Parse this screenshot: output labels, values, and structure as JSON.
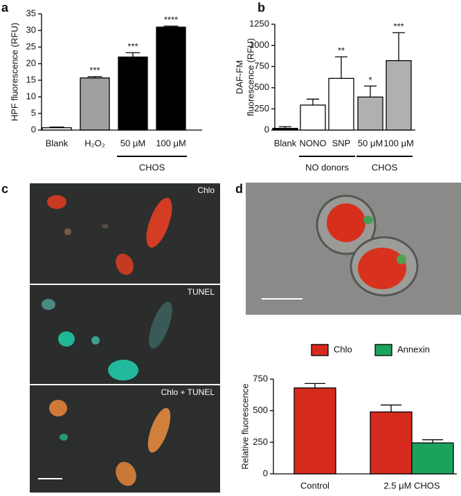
{
  "panels": [
    "a",
    "b",
    "c",
    "d"
  ],
  "images": {
    "c": [
      "Chlo",
      "TUNEL",
      "Chlo + TUNEL"
    ]
  },
  "chart_data": [
    {
      "type": "bar",
      "ylabel": [
        "HPF fluorescence (RFU)"
      ],
      "categories": [
        "Blank",
        "H₂O₂",
        "50 μM",
        "100 μM"
      ],
      "values": [
        0.7,
        15.7,
        22,
        31
      ],
      "errors": [
        0.2,
        0.4,
        1.3,
        0.3
      ],
      "colors": [
        "#ffffff",
        "#a0a0a0",
        "#000000",
        "#000000"
      ],
      "significance": [
        null,
        "***",
        "***",
        "****"
      ],
      "groups": [
        {
          "label": "CHOS",
          "span": [
            2,
            3
          ]
        }
      ],
      "ylim": [
        0,
        35
      ],
      "yticks": [
        0,
        5,
        10,
        15,
        20,
        25,
        30,
        35
      ]
    },
    {
      "type": "bar",
      "ylabel": [
        "DAF-FM",
        "fluorescence (RFU)"
      ],
      "categories": [
        "Blank",
        "NONO",
        "SNP",
        "50 μM",
        "100 μM"
      ],
      "values": [
        20,
        295,
        610,
        390,
        820
      ],
      "errors": [
        20,
        70,
        255,
        130,
        330
      ],
      "colors": [
        "#000000",
        "#ffffff",
        "#ffffff",
        "#b0b0b0",
        "#b0b0b0"
      ],
      "significance": [
        null,
        null,
        "**",
        "*",
        "***"
      ],
      "groups": [
        {
          "label": "NO donors",
          "span": [
            1,
            2
          ]
        },
        {
          "label": "CHOS",
          "span": [
            3,
            4
          ]
        }
      ],
      "ylim": [
        0,
        1250
      ],
      "yticks": [
        0,
        250,
        500,
        750,
        1000,
        1250
      ]
    },
    {
      "type": "grouped-bar",
      "ylabel": [
        "Relative fluorescence"
      ],
      "categories": [
        "Control",
        "2.5 μM CHOS"
      ],
      "series": [
        {
          "name": "Chlo",
          "color": "#d62a1e",
          "values": [
            680,
            490
          ],
          "errors": [
            35,
            55
          ]
        },
        {
          "name": "Annexin",
          "color": "#1ba35b",
          "values": [
            null,
            245
          ],
          "errors": [
            null,
            25
          ]
        }
      ],
      "legend": "top",
      "ylim": [
        0,
        750
      ],
      "yticks": [
        0,
        250,
        500,
        750
      ]
    }
  ]
}
